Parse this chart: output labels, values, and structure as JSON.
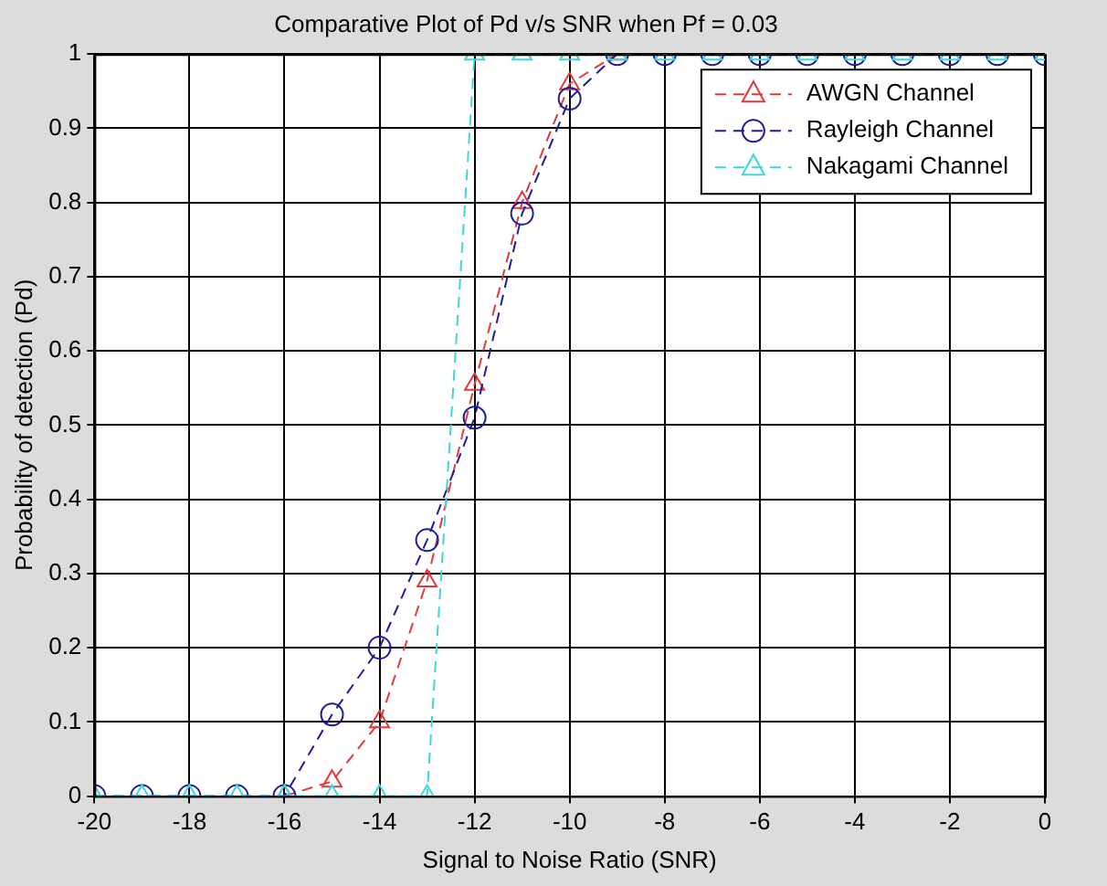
{
  "chart_data": {
    "type": "line",
    "title": "Comparative Plot of Pd v/s SNR when Pf = 0.03",
    "xlabel": "Signal to Noise Ratio (SNR)",
    "ylabel": "Probability of detection (Pd)",
    "x": [
      -20,
      -19,
      -18,
      -17,
      -16,
      -15,
      -14,
      -13,
      -12,
      -11,
      -10,
      -9,
      -8,
      -7,
      -6,
      -5,
      -4,
      -3,
      -2,
      -1,
      0
    ],
    "series": [
      {
        "name": "AWGN Channel",
        "color": "#e03a3a",
        "marker": "triangle",
        "line_style": "dashed",
        "values": [
          null,
          null,
          null,
          null,
          0,
          0.02,
          0.1,
          0.29,
          0.555,
          0.8,
          0.96,
          1,
          null,
          null,
          null,
          null,
          null,
          null,
          null,
          null,
          null
        ]
      },
      {
        "name": "Rayleigh Channel",
        "color": "#1c1c9c",
        "marker": "circle",
        "line_style": "dashed",
        "values": [
          0,
          0,
          0,
          0,
          0,
          0.11,
          0.2,
          0.345,
          0.51,
          0.785,
          0.94,
          1,
          1,
          1,
          1,
          1,
          1,
          1,
          1,
          1,
          1
        ]
      },
      {
        "name": "Nakagami Channel",
        "color": "#3dd6dc",
        "marker": "triangle",
        "line_style": "dashed",
        "values": [
          0,
          0,
          0,
          0,
          0,
          0,
          0,
          0,
          1,
          1,
          1,
          1,
          1,
          1,
          1,
          1,
          1,
          1,
          1,
          1,
          1
        ]
      }
    ],
    "xlim": [
      -20,
      0
    ],
    "xticks": [
      -20,
      -18,
      -16,
      -14,
      -12,
      -10,
      -8,
      -6,
      -4,
      -2,
      0
    ],
    "ylim": [
      0,
      1
    ],
    "yticks": [
      0,
      0.1,
      0.2,
      0.3,
      0.4,
      0.5,
      0.6,
      0.7,
      0.8,
      0.9,
      1
    ],
    "grid": true,
    "legend": "top right"
  }
}
